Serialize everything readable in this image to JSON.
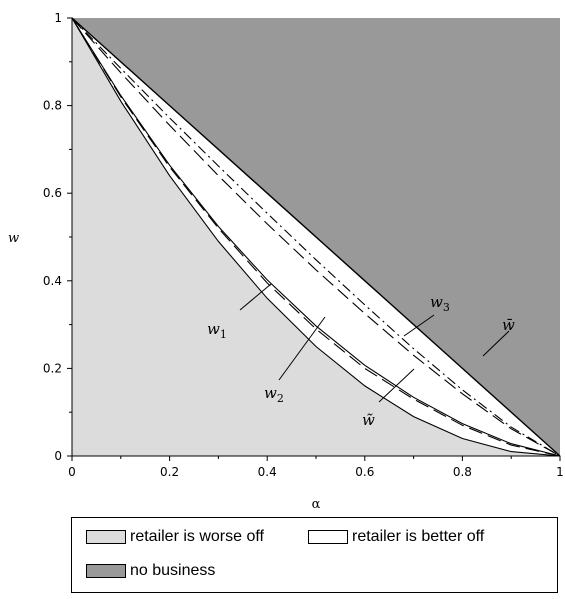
{
  "chart_data": {
    "type": "area",
    "xlabel": "α",
    "ylabel": "w",
    "xlim": [
      0,
      1
    ],
    "ylim": [
      0,
      1
    ],
    "x_ticks": [
      0,
      0.2,
      0.4,
      0.6,
      0.8,
      1
    ],
    "y_ticks": [
      0,
      0.2,
      0.4,
      0.6,
      0.8,
      1
    ],
    "x_tick_labels": [
      "0",
      "0.2",
      "0.4",
      "0.6",
      "0.8",
      "1"
    ],
    "y_tick_labels": [
      "0",
      "0.2",
      "0.4",
      "0.6",
      "0.8",
      "1"
    ],
    "colors": {
      "worse_off": "#dcdcdc",
      "better_off": "#ffffff",
      "no_business": "#999999",
      "line": "#000000"
    },
    "series": [
      {
        "name": "w̄",
        "style": "solid",
        "x": [
          0,
          0.2,
          0.4,
          0.6,
          0.8,
          1
        ],
        "y": [
          1,
          0.8,
          0.6,
          0.4,
          0.2,
          0
        ]
      },
      {
        "name": "w3",
        "style": "dash-dot",
        "x": [
          0,
          0.1,
          0.2,
          0.3,
          0.4,
          0.5,
          0.6,
          0.7,
          0.8,
          0.9,
          1
        ],
        "y": [
          1,
          0.885,
          0.772,
          0.662,
          0.554,
          0.448,
          0.345,
          0.245,
          0.151,
          0.066,
          0
        ]
      },
      {
        "name": "",
        "style": "long-dash",
        "x": [
          0,
          0.1,
          0.2,
          0.3,
          0.4,
          0.5,
          0.6,
          0.7,
          0.8,
          0.9,
          1
        ],
        "y": [
          1,
          0.875,
          0.755,
          0.64,
          0.53,
          0.425,
          0.325,
          0.23,
          0.142,
          0.062,
          0
        ]
      },
      {
        "name": "w̃",
        "style": "long-dash",
        "x": [
          0,
          0.1,
          0.2,
          0.3,
          0.4,
          0.5,
          0.6,
          0.7,
          0.8,
          0.9,
          1
        ],
        "y": [
          1,
          0.82,
          0.66,
          0.52,
          0.395,
          0.29,
          0.2,
          0.13,
          0.07,
          0.025,
          0
        ]
      },
      {
        "name": "w2",
        "style": "solid",
        "x": [
          0,
          0.1,
          0.2,
          0.3,
          0.4,
          0.5,
          0.6,
          0.7,
          0.8,
          0.9,
          1
        ],
        "y": [
          1,
          0.823,
          0.664,
          0.524,
          0.402,
          0.297,
          0.207,
          0.134,
          0.074,
          0.028,
          0
        ]
      },
      {
        "name": "w1",
        "style": "solid",
        "x": [
          0,
          0.1,
          0.2,
          0.3,
          0.4,
          0.5,
          0.6,
          0.7,
          0.8,
          0.9,
          1
        ],
        "y": [
          1,
          0.81,
          0.64,
          0.49,
          0.36,
          0.25,
          0.16,
          0.09,
          0.04,
          0.01,
          0
        ]
      }
    ],
    "annotations": {
      "w1": {
        "base": "w",
        "sub": "1"
      },
      "w2": {
        "base": "w",
        "sub": "2"
      },
      "w3": {
        "base": "w",
        "sub": "3"
      },
      "wbar": "w̄",
      "wtilde": "w̃"
    },
    "legend": {
      "placement": "bottom",
      "items": [
        {
          "key": "worse_off",
          "label": "retailer is worse off"
        },
        {
          "key": "better_off",
          "label": "retailer is better off"
        },
        {
          "key": "no_business",
          "label": "no business"
        }
      ]
    }
  }
}
